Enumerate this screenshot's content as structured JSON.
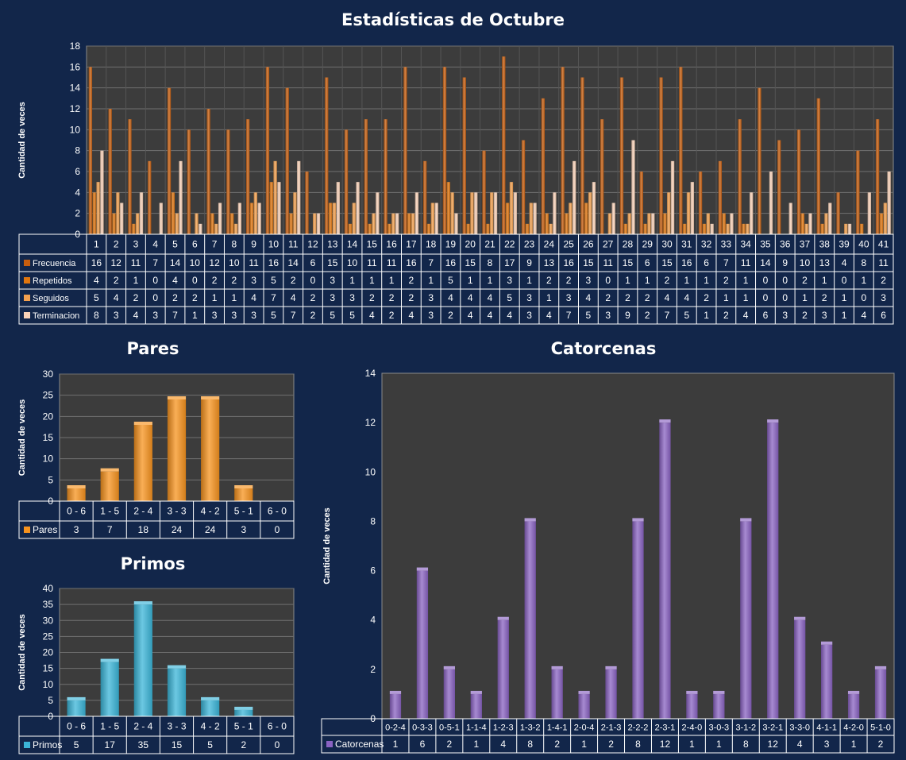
{
  "colors": {
    "background": "#12264a",
    "plot_bg": "#3c3c3c",
    "grid": "#707070",
    "frecuencia": "#c65d0e",
    "repetidos": "#e0760f",
    "seguidos": "#f4a14f",
    "terminacion": "#f9d2b8",
    "pares": "#f7931e",
    "primos": "#3bb5d8",
    "catorcenas": "#8a63c2"
  },
  "titles": {
    "main": "Estadísticas de Octubre",
    "pares": "Pares",
    "primos": "Primos",
    "catorcenas": "Catorcenas"
  },
  "chart_data": [
    {
      "type": "bar",
      "title": "Estadísticas de Octubre",
      "ylabel": "Cantidad de veces",
      "ylim": [
        0,
        18
      ],
      "yticks": [
        0,
        2,
        4,
        6,
        8,
        10,
        12,
        14,
        16,
        18
      ],
      "grid": true,
      "legend": "table-below",
      "categories": [
        "1",
        "2",
        "3",
        "4",
        "5",
        "6",
        "7",
        "8",
        "9",
        "10",
        "11",
        "12",
        "13",
        "14",
        "15",
        "16",
        "17",
        "18",
        "19",
        "20",
        "21",
        "22",
        "23",
        "24",
        "25",
        "26",
        "27",
        "28",
        "29",
        "30",
        "31",
        "32",
        "33",
        "34",
        "35",
        "36",
        "37",
        "38",
        "39",
        "40",
        "41"
      ],
      "series": [
        {
          "name": "Frecuencia",
          "values": [
            16,
            12,
            11,
            7,
            14,
            10,
            12,
            10,
            11,
            16,
            14,
            6,
            15,
            10,
            11,
            11,
            16,
            7,
            16,
            15,
            8,
            17,
            9,
            13,
            16,
            15,
            11,
            15,
            6,
            15,
            16,
            6,
            7,
            11,
            14,
            9,
            10,
            13,
            4,
            8,
            11
          ]
        },
        {
          "name": "Repetidos",
          "values": [
            4,
            2,
            1,
            0,
            4,
            0,
            2,
            2,
            3,
            5,
            2,
            0,
            3,
            1,
            1,
            1,
            2,
            1,
            5,
            1,
            1,
            3,
            1,
            2,
            2,
            3,
            0,
            1,
            1,
            2,
            1,
            1,
            2,
            1,
            0,
            0,
            2,
            1,
            0,
            1,
            2
          ]
        },
        {
          "name": "Seguidos",
          "values": [
            5,
            4,
            2,
            0,
            2,
            2,
            1,
            1,
            4,
            7,
            4,
            2,
            3,
            3,
            2,
            2,
            2,
            3,
            4,
            4,
            4,
            5,
            3,
            1,
            3,
            4,
            2,
            2,
            2,
            4,
            4,
            2,
            1,
            1,
            0,
            0,
            1,
            2,
            1,
            0,
            3
          ]
        },
        {
          "name": "Terminacion",
          "values": [
            8,
            3,
            4,
            3,
            7,
            1,
            3,
            3,
            3,
            5,
            7,
            2,
            5,
            5,
            4,
            2,
            4,
            3,
            2,
            4,
            4,
            4,
            3,
            4,
            7,
            5,
            3,
            9,
            2,
            7,
            5,
            1,
            2,
            4,
            6,
            3,
            2,
            3,
            1,
            4,
            6
          ]
        }
      ]
    },
    {
      "type": "bar",
      "title": "Pares",
      "ylabel": "Cantidad de veces",
      "ylim": [
        0,
        30
      ],
      "yticks": [
        0,
        5,
        10,
        15,
        20,
        25,
        30
      ],
      "grid": true,
      "legend": "table-below",
      "categories": [
        "0 - 6",
        "1 - 5",
        "2 - 4",
        "3 - 3",
        "4 - 2",
        "5 - 1",
        "6 - 0"
      ],
      "series": [
        {
          "name": "Pares",
          "values": [
            3,
            7,
            18,
            24,
            24,
            3,
            0
          ]
        }
      ]
    },
    {
      "type": "bar",
      "title": "Primos",
      "ylabel": "Cantidad de veces",
      "ylim": [
        0,
        40
      ],
      "yticks": [
        0,
        5,
        10,
        15,
        20,
        25,
        30,
        35,
        40
      ],
      "grid": true,
      "legend": "table-below",
      "categories": [
        "0 - 6",
        "1 - 5",
        "2 - 4",
        "3 - 3",
        "4 - 2",
        "5 - 1",
        "6 - 0"
      ],
      "series": [
        {
          "name": "Primos",
          "values": [
            5,
            17,
            35,
            15,
            5,
            2,
            0
          ]
        }
      ]
    },
    {
      "type": "bar",
      "title": "Catorcenas",
      "ylabel": "Cantidad de veces",
      "ylim": [
        0,
        14
      ],
      "yticks": [
        0,
        2,
        4,
        6,
        8,
        10,
        12,
        14
      ],
      "grid": false,
      "legend": "table-below",
      "categories": [
        "0-2-4",
        "0-3-3",
        "0-5-1",
        "1-1-4",
        "1-2-3",
        "1-3-2",
        "1-4-1",
        "2-0-4",
        "2-1-3",
        "2-2-2",
        "2-3-1",
        "2-4-0",
        "3-0-3",
        "3-1-2",
        "3-2-1",
        "3-3-0",
        "4-1-1",
        "4-2-0",
        "5-1-0"
      ],
      "series": [
        {
          "name": "Catorcenas",
          "values": [
            1,
            6,
            2,
            1,
            4,
            8,
            2,
            1,
            2,
            8,
            12,
            1,
            1,
            8,
            12,
            4,
            3,
            1,
            2
          ]
        }
      ]
    }
  ]
}
